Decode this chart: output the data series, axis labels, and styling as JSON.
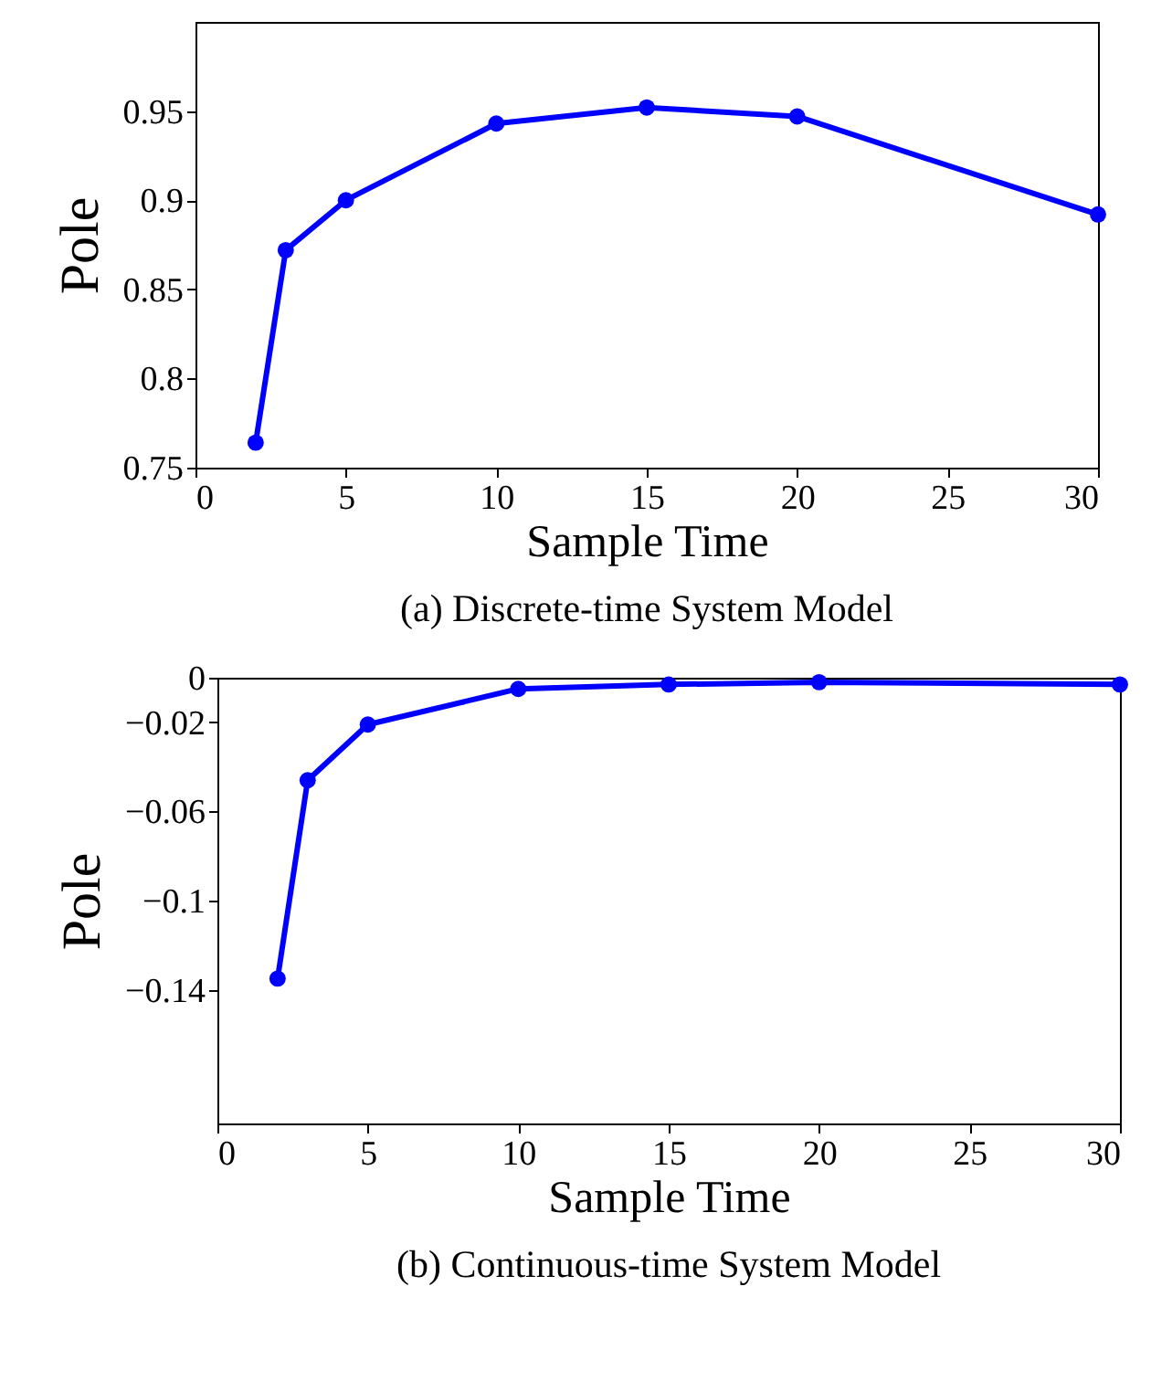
{
  "chart_data": [
    {
      "type": "line",
      "title": "(a) Discrete-time System Model",
      "xlabel": "Sample Time",
      "ylabel": "Pole",
      "x": [
        2,
        3,
        5,
        10,
        15,
        20,
        30
      ],
      "series": [
        {
          "color": "#0000ff",
          "values": [
            0.764,
            0.872,
            0.9,
            0.943,
            0.952,
            0.947,
            0.892
          ]
        }
      ],
      "xlim": [
        0,
        30
      ],
      "xticks": [
        0,
        5,
        10,
        15,
        20,
        25,
        30
      ],
      "ylim": [
        0.75,
        1.0
      ],
      "yticks": [
        0.75,
        0.8,
        0.85,
        0.9,
        0.95
      ],
      "marker": "circle",
      "line_style": "solid"
    },
    {
      "type": "line",
      "title": "(b) Continuous-time System Model",
      "xlabel": "Sample Time",
      "ylabel": "Pole",
      "x": [
        2,
        3,
        5,
        10,
        15,
        20,
        30
      ],
      "series": [
        {
          "color": "#0000ff",
          "values": [
            -0.135,
            -0.046,
            -0.021,
            -0.005,
            -0.003,
            -0.002,
            -0.003
          ]
        }
      ],
      "xlim": [
        0,
        30
      ],
      "xticks": [
        0,
        5,
        10,
        15,
        20,
        25,
        30
      ],
      "ylim": [
        -0.2,
        0
      ],
      "yticks": [
        0,
        -0.02,
        -0.06,
        -0.1,
        -0.14
      ],
      "marker": "circle",
      "line_style": "solid"
    }
  ]
}
